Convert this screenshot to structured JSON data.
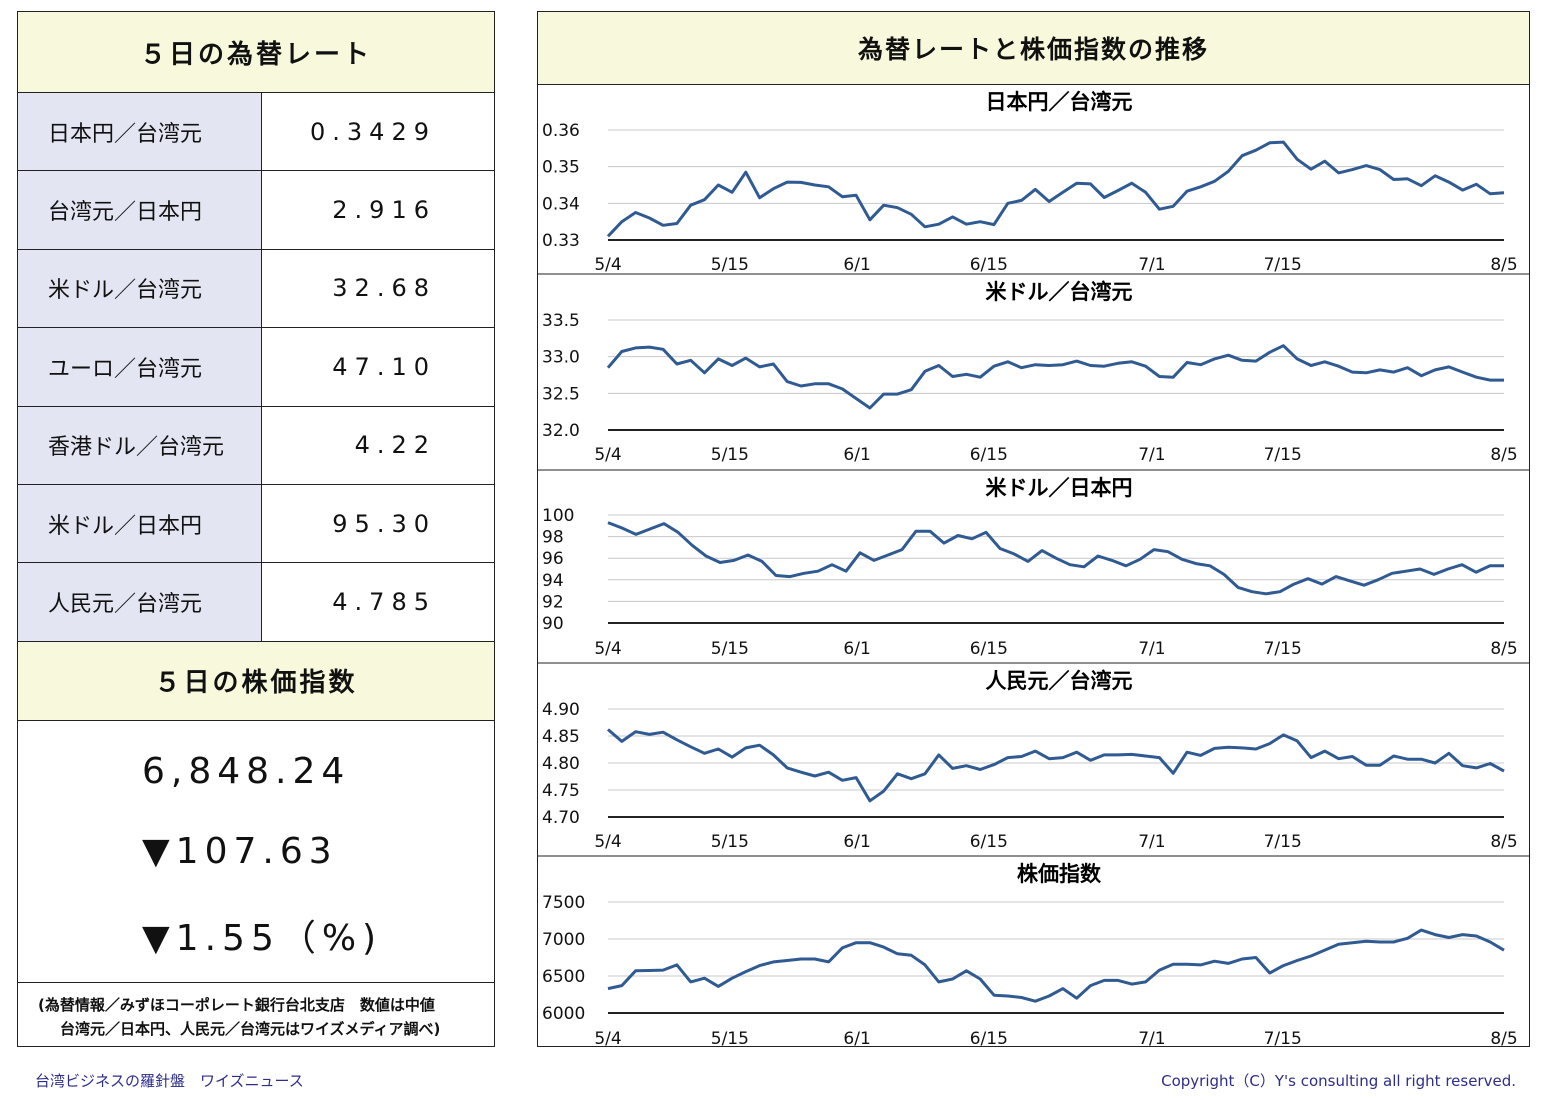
{
  "rates": {
    "title": "５日の為替レート",
    "items": [
      {
        "label": "日本円／台湾元",
        "value": "0.3429"
      },
      {
        "label": "台湾元／日本円",
        "value": "2.916"
      },
      {
        "label": "米ドル／台湾元",
        "value": "32.68"
      },
      {
        "label": "ユーロ／台湾元",
        "value": "47.10"
      },
      {
        "label": "香港ドル／台湾元",
        "value": "4.22"
      },
      {
        "label": "米ドル／日本円",
        "value": "95.30"
      },
      {
        "label": "人民元／台湾元",
        "value": "4.785"
      }
    ]
  },
  "stock": {
    "title": "５日の株価指数",
    "value": "6,848.24",
    "change": "▼107.63",
    "change_pct": "▼1.55（%)"
  },
  "footnote": {
    "line1": "(為替情報／みずほコーポレート銀行台北支店　数値は中値",
    "line2": "台湾元／日本円、人民元／台湾元はワイズメディア調べ)"
  },
  "chart_panel_title": "為替レートと株価指数の推移",
  "footer": {
    "left": "台湾ビジネスの羅針盤　ワイズニュース",
    "right": "Copyright（C）Y's consulting all right reserved."
  },
  "colors": {
    "line": "#2f5a92",
    "header_bg": "#f8f9dc",
    "label_bg": "#e3e5f2",
    "footer_text": "#2d2d8c"
  },
  "chart_data": [
    {
      "type": "line",
      "title": "日本円／台湾元",
      "ylim": [
        0.33,
        0.36
      ],
      "yticks": [
        "0.36",
        "0.35",
        "0.34",
        "0.33"
      ],
      "xticks": [
        "5/4",
        "5/15",
        "6/1",
        "6/15",
        "7/1",
        "7/15",
        "8/5"
      ],
      "grid": true,
      "values": [
        0.331,
        0.335,
        0.3375,
        0.336,
        0.334,
        0.3345,
        0.3395,
        0.341,
        0.345,
        0.343,
        0.3485,
        0.3415,
        0.344,
        0.3458,
        0.3457,
        0.345,
        0.3445,
        0.3418,
        0.3422,
        0.3355,
        0.3395,
        0.3388,
        0.337,
        0.3336,
        0.3343,
        0.3363,
        0.3343,
        0.335,
        0.3342,
        0.34,
        0.3408,
        0.3438,
        0.3405,
        0.343,
        0.3455,
        0.3453,
        0.3416,
        0.3435,
        0.3455,
        0.343,
        0.3384,
        0.3392,
        0.3433,
        0.3445,
        0.346,
        0.3487,
        0.353,
        0.3545,
        0.3565,
        0.3567,
        0.352,
        0.3493,
        0.3515,
        0.3483,
        0.3492,
        0.3503,
        0.3492,
        0.3465,
        0.3467,
        0.3448,
        0.3475,
        0.3458,
        0.3436,
        0.3452,
        0.3426,
        0.3429
      ]
    },
    {
      "type": "line",
      "title": "米ドル／台湾元",
      "ylim": [
        32.0,
        33.5
      ],
      "yticks": [
        "33.5",
        "33.0",
        "32.5",
        "32.0"
      ],
      "xticks": [
        "5/4",
        "5/15",
        "6/1",
        "6/15",
        "7/1",
        "7/15",
        "8/5"
      ],
      "grid": true,
      "values": [
        32.85,
        33.07,
        33.12,
        33.13,
        33.1,
        32.9,
        32.95,
        32.78,
        32.97,
        32.88,
        32.98,
        32.86,
        32.9,
        32.66,
        32.6,
        32.63,
        32.63,
        32.56,
        32.43,
        32.3,
        32.49,
        32.49,
        32.55,
        32.8,
        32.88,
        32.73,
        32.76,
        32.72,
        32.87,
        32.93,
        32.85,
        32.89,
        32.88,
        32.89,
        32.94,
        32.88,
        32.87,
        32.91,
        32.93,
        32.87,
        32.73,
        32.72,
        32.92,
        32.89,
        32.97,
        33.02,
        32.95,
        32.94,
        33.06,
        33.15,
        32.97,
        32.88,
        32.93,
        32.87,
        32.79,
        32.78,
        32.82,
        32.79,
        32.85,
        32.74,
        32.82,
        32.86,
        32.79,
        32.72,
        32.68,
        32.68
      ]
    },
    {
      "type": "line",
      "title": "米ドル／日本円",
      "ylim": [
        90,
        100
      ],
      "yticks": [
        "100",
        "98",
        "96",
        "94",
        "92",
        "90"
      ],
      "xticks": [
        "5/4",
        "5/15",
        "6/1",
        "6/15",
        "7/1",
        "7/15",
        "8/5"
      ],
      "grid": true,
      "values": [
        99.3,
        98.8,
        98.2,
        98.7,
        99.2,
        98.4,
        97.2,
        96.2,
        95.6,
        95.8,
        96.3,
        95.7,
        94.4,
        94.3,
        94.6,
        94.8,
        95.4,
        94.8,
        96.5,
        95.8,
        96.3,
        96.8,
        98.5,
        98.5,
        97.4,
        98.1,
        97.8,
        98.4,
        96.9,
        96.4,
        95.7,
        96.7,
        96.0,
        95.4,
        95.2,
        96.2,
        95.8,
        95.3,
        95.9,
        96.8,
        96.6,
        95.9,
        95.5,
        95.3,
        94.5,
        93.3,
        92.9,
        92.7,
        92.9,
        93.6,
        94.1,
        93.6,
        94.3,
        93.9,
        93.5,
        94.0,
        94.6,
        94.8,
        95.0,
        94.5,
        95.0,
        95.4,
        94.7,
        95.3,
        95.3
      ]
    },
    {
      "type": "line",
      "title": "人民元／台湾元",
      "ylim": [
        4.7,
        4.9
      ],
      "yticks": [
        "4.90",
        "4.85",
        "4.80",
        "4.75",
        "4.70"
      ],
      "xticks": [
        "5/4",
        "5/15",
        "6/1",
        "6/15",
        "7/1",
        "7/15",
        "8/5"
      ],
      "grid": true,
      "values": [
        4.862,
        4.84,
        4.858,
        4.853,
        4.857,
        4.843,
        4.83,
        4.818,
        4.826,
        4.811,
        4.828,
        4.833,
        4.815,
        4.791,
        4.783,
        4.776,
        4.783,
        4.768,
        4.773,
        4.73,
        4.748,
        4.78,
        4.771,
        4.78,
        4.815,
        4.79,
        4.795,
        4.788,
        4.797,
        4.81,
        4.812,
        4.822,
        4.808,
        4.81,
        4.82,
        4.805,
        4.815,
        4.815,
        4.816,
        4.813,
        4.81,
        4.781,
        4.82,
        4.814,
        4.827,
        4.829,
        4.828,
        4.826,
        4.836,
        4.852,
        4.841,
        4.81,
        4.822,
        4.808,
        4.812,
        4.796,
        4.796,
        4.813,
        4.807,
        4.807,
        4.8,
        4.818,
        4.795,
        4.791,
        4.799,
        4.785
      ]
    },
    {
      "type": "line",
      "title": "株価指数",
      "ylim": [
        6000,
        7500
      ],
      "yticks": [
        "7500",
        "7000",
        "6500",
        "6000"
      ],
      "xticks": [
        "5/4",
        "5/15",
        "6/1",
        "6/15",
        "7/1",
        "7/15",
        "8/5"
      ],
      "grid": true,
      "values": [
        6330,
        6370,
        6570,
        6575,
        6580,
        6650,
        6420,
        6470,
        6360,
        6470,
        6560,
        6640,
        6690,
        6710,
        6730,
        6730,
        6690,
        6880,
        6950,
        6950,
        6890,
        6800,
        6780,
        6650,
        6420,
        6460,
        6570,
        6460,
        6240,
        6230,
        6210,
        6160,
        6230,
        6330,
        6200,
        6370,
        6440,
        6440,
        6390,
        6420,
        6580,
        6660,
        6660,
        6650,
        6700,
        6670,
        6730,
        6750,
        6540,
        6640,
        6710,
        6770,
        6850,
        6930,
        6950,
        6970,
        6960,
        6960,
        7010,
        7120,
        7060,
        7020,
        7060,
        7040,
        6960,
        6848
      ]
    }
  ]
}
